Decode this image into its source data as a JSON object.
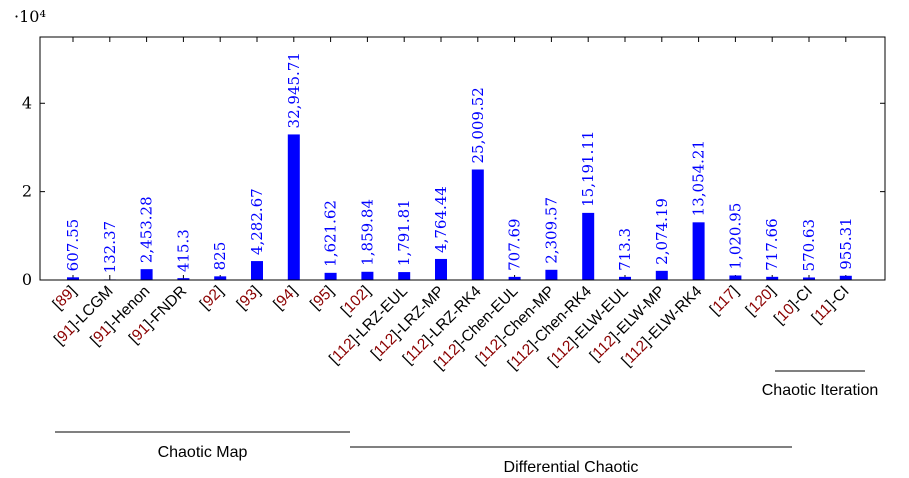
{
  "chart_data": {
    "type": "bar",
    "y_multiplier_label": "·10⁴",
    "ylim": [
      0,
      55000
    ],
    "y_ticks": [
      0,
      20000,
      40000
    ],
    "y_tick_labels": [
      "0",
      "2",
      "4"
    ],
    "ref_color": "#8b0000",
    "bar_color": "#0000ff",
    "categories": [
      {
        "ref": "89",
        "suffix": ""
      },
      {
        "ref": "91",
        "suffix": "-LCGM"
      },
      {
        "ref": "91",
        "suffix": "-Henon"
      },
      {
        "ref": "91",
        "suffix": "-FNDR"
      },
      {
        "ref": "92",
        "suffix": ""
      },
      {
        "ref": "93",
        "suffix": ""
      },
      {
        "ref": "94",
        "suffix": ""
      },
      {
        "ref": "95",
        "suffix": ""
      },
      {
        "ref": "102",
        "suffix": ""
      },
      {
        "ref": "112",
        "suffix": "-LRZ-EUL"
      },
      {
        "ref": "112",
        "suffix": "-LRZ-MP"
      },
      {
        "ref": "112",
        "suffix": "-LRZ-RK4"
      },
      {
        "ref": "112",
        "suffix": "-Chen-EUL"
      },
      {
        "ref": "112",
        "suffix": "-Chen-MP"
      },
      {
        "ref": "112",
        "suffix": "-Chen-RK4"
      },
      {
        "ref": "112",
        "suffix": "-ELW-EUL"
      },
      {
        "ref": "112",
        "suffix": "-ELW-MP"
      },
      {
        "ref": "112",
        "suffix": "-ELW-RK4"
      },
      {
        "ref": "117",
        "suffix": ""
      },
      {
        "ref": "120",
        "suffix": ""
      },
      {
        "ref": "10",
        "suffix": "-CI"
      },
      {
        "ref": "11",
        "suffix": "-CI"
      }
    ],
    "values": [
      607.55,
      132.37,
      2453.28,
      415.3,
      825,
      4282.67,
      32945.71,
      1621.62,
      1859.84,
      1791.81,
      4764.44,
      25009.52,
      707.69,
      2309.57,
      15191.11,
      713.3,
      2074.19,
      13054.21,
      1020.95,
      717.66,
      570.63,
      955.31
    ],
    "value_labels": [
      "607.55",
      "132.37",
      "2,453.28",
      "415.3",
      "825",
      "4,282.67",
      "32,945.71",
      "1,621.62",
      "1,859.84",
      "1,791.81",
      "4,764.44",
      "25,009.52",
      "707.69",
      "2,309.57",
      "15,191.11",
      "713.3",
      "2,074.19",
      "13,054.21",
      "1,020.95",
      "717.66",
      "570.63",
      "955.31"
    ],
    "groups": [
      {
        "name": "Chaotic Map",
        "first": 0,
        "last": 8
      },
      {
        "name": "Differential Chaotic",
        "first": 9,
        "last": 17
      },
      {
        "name": "Chaotic Iteration",
        "first": 20,
        "last": 21
      }
    ]
  }
}
